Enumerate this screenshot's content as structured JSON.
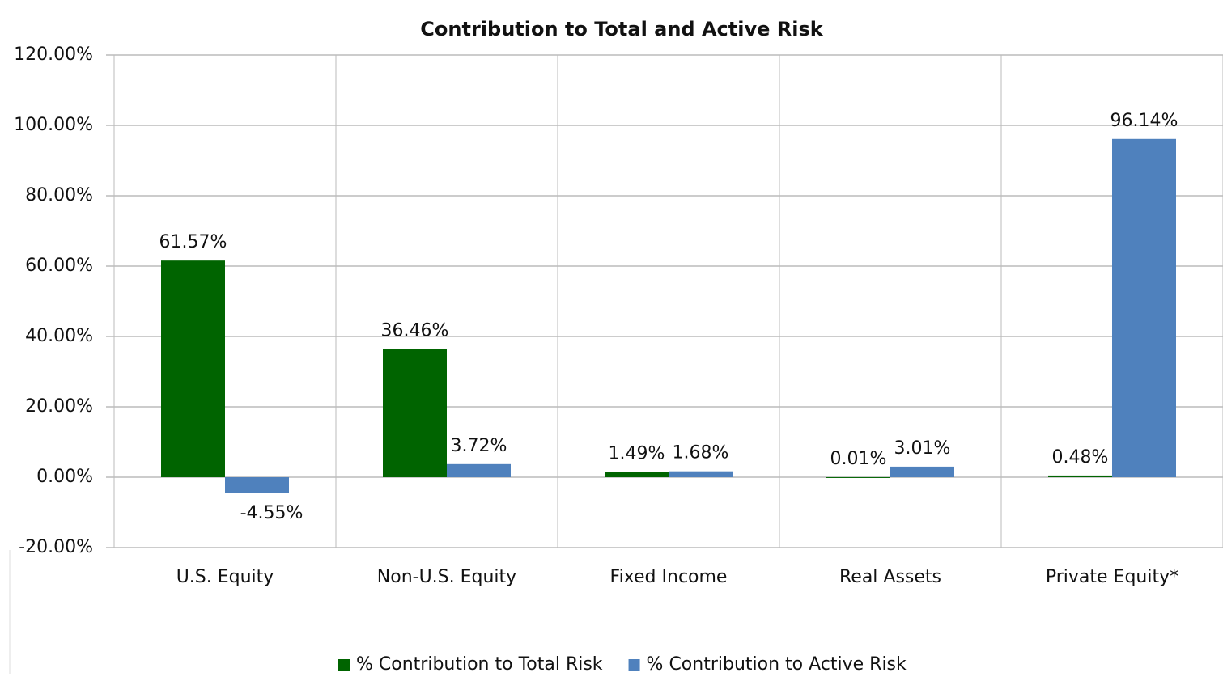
{
  "chart_data": {
    "type": "bar",
    "title": "Contribution to Total and Active Risk",
    "categories": [
      "U.S. Equity",
      "Non-U.S. Equity",
      "Fixed Income",
      "Real Assets",
      "Private Equity*"
    ],
    "series": [
      {
        "name": "% Contribution to Total Risk",
        "color": "#006400",
        "values": [
          61.57,
          36.46,
          1.49,
          0.01,
          0.48
        ],
        "value_labels": [
          "61.57%",
          "36.46%",
          "1.49%",
          "0.01%",
          "0.48%"
        ]
      },
      {
        "name": "% Contribution to Active Risk",
        "color": "#4f81bd",
        "values": [
          -4.55,
          3.72,
          1.68,
          3.01,
          96.14
        ],
        "value_labels": [
          "-4.55%",
          "3.72%",
          "1.68%",
          "3.01%",
          "96.14%"
        ]
      }
    ],
    "ylim": [
      -20,
      120
    ],
    "yticks": [
      {
        "value": -20,
        "label": "-20.00%"
      },
      {
        "value": 0,
        "label": "0.00%"
      },
      {
        "value": 20,
        "label": "20.00%"
      },
      {
        "value": 40,
        "label": "40.00%"
      },
      {
        "value": 60,
        "label": "60.00%"
      },
      {
        "value": 80,
        "label": "80.00%"
      },
      {
        "value": 100,
        "label": "100.00%"
      },
      {
        "value": 120,
        "label": "120.00%"
      }
    ],
    "grid": true,
    "legend": "bottom"
  }
}
